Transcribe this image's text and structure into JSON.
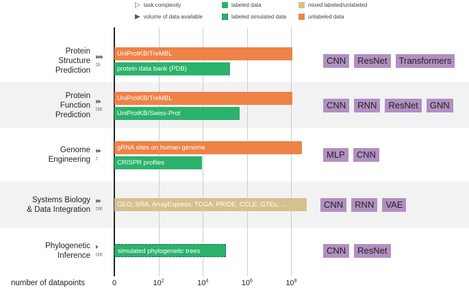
{
  "legend": [
    {
      "label": "task complexity",
      "icon": "outline-triangle-icon"
    },
    {
      "label": "volume of data available",
      "icon": "filled-triangle-icon"
    },
    {
      "label": "labeled data",
      "color": "#2bb26b"
    },
    {
      "label": "labeled simulated data",
      "color": "#2bb26b",
      "dashed": true
    },
    {
      "label": "mixed labeled/unlabeled",
      "color": "#d6c08e"
    },
    {
      "label": "unlabeled data",
      "color": "#ee8247"
    }
  ],
  "chart_data": {
    "type": "bar",
    "orientation": "horizontal",
    "xscale": "log",
    "xlabel": "number of datapoints",
    "xticks": [
      "0",
      "10^2",
      "10^4",
      "10^6",
      "10^8"
    ],
    "grid": true,
    "categories": [
      {
        "label": "Protein Structure Prediction",
        "lines": [
          "Protein",
          "Structure",
          "Prediction"
        ],
        "volume": 3,
        "complexity": 2,
        "bars": [
          {
            "label": "UniProtKB/TreMBL",
            "value": 110000000,
            "type": "unlabeled"
          },
          {
            "label": "protein data bank (PDB)",
            "value": 170000,
            "type": "labeled"
          }
        ],
        "methods": [
          "CNN",
          "ResNet",
          "Transformers"
        ]
      },
      {
        "label": "Protein Function Prediction",
        "lines": [
          "Protein",
          "Function",
          "Prediction"
        ],
        "volume": 2,
        "complexity": 3,
        "bars": [
          {
            "label": "UniProtKB/TreMBL",
            "value": 110000000,
            "type": "unlabeled"
          },
          {
            "label": "UniProtKB/Swiss-Prot",
            "value": 450000,
            "type": "labeled"
          }
        ],
        "methods": [
          "CNN",
          "RNN",
          "ResNet",
          "GNN"
        ]
      },
      {
        "label": "Genome Engineering",
        "lines": [
          "Genome",
          "Engineering"
        ],
        "volume": 2,
        "complexity": 1,
        "bars": [
          {
            "label": "gRNA sites on human genome",
            "value": 300000000,
            "type": "unlabeled"
          },
          {
            "label": "CRISPR profiles",
            "value": 9000,
            "type": "labeled"
          }
        ],
        "methods": [
          "MLP",
          "CNN"
        ]
      },
      {
        "label": "Systems Biology & Data Integration",
        "lines": [
          "Systems Biology",
          "& Data Integration"
        ],
        "volume": 2,
        "complexity": 3,
        "bars": [
          {
            "label": "GEO, SRA, ArrayExpress, TCGA, PRIDE, CCLE, GTEx, ...",
            "value": 500000000,
            "type": "mixed"
          }
        ],
        "methods": [
          "CNN",
          "RNN",
          "VAE"
        ]
      },
      {
        "label": "Phylogenetic Inference",
        "lines": [
          "Phylogenetic",
          "Inference"
        ],
        "volume": 1,
        "complexity": 3,
        "bars": [
          {
            "label": "simulated phylogenetic trees",
            "value": 110000,
            "type": "simulated"
          }
        ],
        "methods": [
          "CNN",
          "ResNet"
        ]
      }
    ]
  },
  "colors": {
    "labeled": "#2bb26b",
    "simulated": "#2bb26b",
    "mixed": "#d6c08e",
    "unlabeled": "#ee8247",
    "method": "#b18fc2",
    "band": "#f2f2f2"
  }
}
